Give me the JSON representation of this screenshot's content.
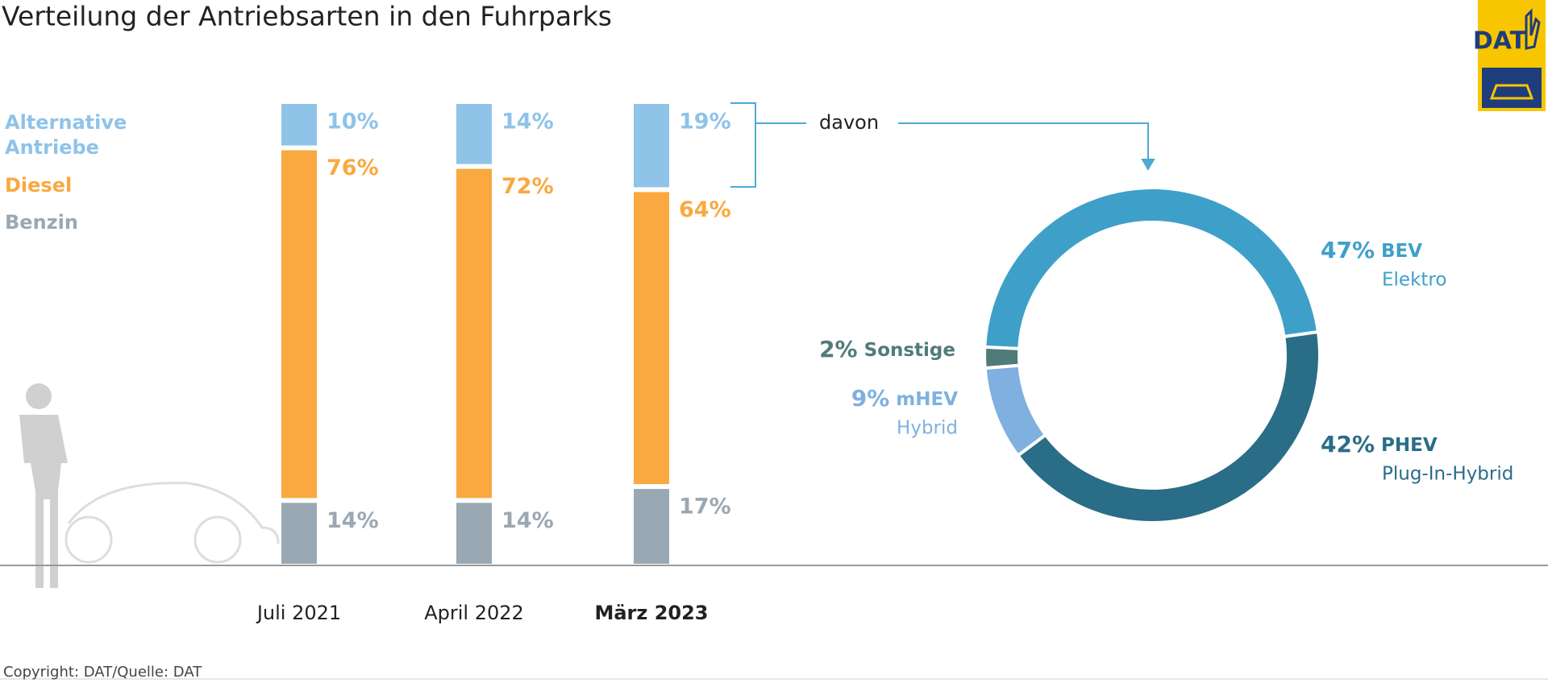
{
  "logo": "DAT",
  "source": "Copyright: DAT/Quelle: DAT",
  "chart_data": [
    {
      "type": "stacked-bar",
      "title": "Verteilung der Antriebsarten in den Fuhrparks",
      "categories": [
        "Juli 2021",
        "April 2022",
        "März 2023"
      ],
      "series": [
        {
          "name": "Benzin",
          "color": "#9aa8b3",
          "values": [
            14,
            14,
            17
          ],
          "value_labels": [
            "14%",
            "14%",
            "17%"
          ]
        },
        {
          "name": "Diesel",
          "color": "#f9a93f",
          "values": [
            76,
            72,
            64
          ],
          "value_labels": [
            "76%",
            "72%",
            "64%"
          ]
        },
        {
          "name": "Alternative Antriebe",
          "color": "#8fc3e8",
          "values": [
            10,
            14,
            19
          ],
          "value_labels": [
            "10%",
            "14%",
            "19%"
          ]
        }
      ],
      "ylim": [
        0,
        100
      ]
    },
    {
      "type": "donut",
      "annotation": "davon",
      "categories": [
        "BEV",
        "PHEV",
        "mHEV",
        "Sonstige"
      ],
      "details": [
        "Elektro",
        "Plug-In-Hybrid",
        "Hybrid",
        null
      ],
      "values": [
        47,
        42,
        9,
        2
      ],
      "value_labels": [
        "47%",
        "42%",
        "9%",
        "2%"
      ],
      "colors": [
        "#3ea0c9",
        "#2a6d86",
        "#7fb0e0",
        "#4f7b7b"
      ]
    }
  ]
}
